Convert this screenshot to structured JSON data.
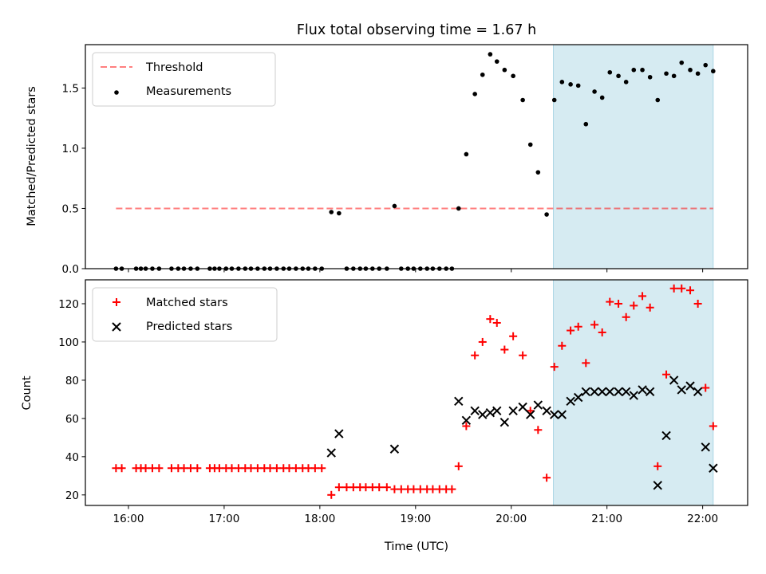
{
  "chart_data": {
    "type": "scatter",
    "title": "Flux total observing time = 1.67 h",
    "xlabel": "Time (UTC)",
    "x_unit": "hours UTC",
    "xlim": [
      15.55,
      22.47
    ],
    "x_ticks": [
      {
        "value": 16,
        "label": "16:00"
      },
      {
        "value": 17,
        "label": "17:00"
      },
      {
        "value": 18,
        "label": "18:00"
      },
      {
        "value": 19,
        "label": "19:00"
      },
      {
        "value": 20,
        "label": "20:00"
      },
      {
        "value": 21,
        "label": "21:00"
      },
      {
        "value": 22,
        "label": "22:00"
      }
    ],
    "shaded_region": {
      "x_start": 20.44,
      "x_end": 22.11,
      "color": "#add8e6"
    },
    "panels": [
      {
        "name": "ratio",
        "ylabel": "Matched/Predicted stars",
        "ylim": [
          0.0,
          1.86
        ],
        "y_ticks": [
          {
            "value": 0.0,
            "label": "0.0"
          },
          {
            "value": 0.5,
            "label": "0.5"
          },
          {
            "value": 1.0,
            "label": "1.0"
          },
          {
            "value": 1.5,
            "label": "1.5"
          }
        ],
        "threshold": {
          "label": "Threshold",
          "value": 0.5,
          "x_start": 15.87,
          "x_end": 22.11,
          "color": "#ff0000",
          "alpha": 0.5
        },
        "measurements": {
          "label": "Measurements",
          "color": "#000000",
          "x": [
            15.87,
            15.93,
            16.08,
            16.13,
            16.18,
            16.25,
            16.32,
            16.45,
            16.52,
            16.58,
            16.65,
            16.72,
            16.85,
            16.9,
            16.95,
            17.02,
            17.08,
            17.15,
            17.22,
            17.28,
            17.35,
            17.42,
            17.48,
            17.55,
            17.62,
            17.68,
            17.75,
            17.82,
            17.88,
            17.95,
            18.02,
            18.12,
            18.2,
            18.28,
            18.35,
            18.42,
            18.48,
            18.55,
            18.62,
            18.7,
            18.78,
            18.85,
            18.92,
            18.98,
            19.05,
            19.12,
            19.18,
            19.25,
            19.32,
            19.38,
            19.45,
            19.53,
            19.62,
            19.7,
            19.78,
            19.85,
            19.93,
            20.02,
            20.12,
            20.2,
            20.28,
            20.37,
            20.45,
            20.53,
            20.62,
            20.7,
            20.78,
            20.87,
            20.95,
            21.03,
            21.12,
            21.2,
            21.28,
            21.37,
            21.45,
            21.53,
            21.62,
            21.7,
            21.78,
            21.87,
            21.95,
            22.03,
            22.11
          ],
          "y": [
            0,
            0,
            0,
            0,
            0,
            0,
            0,
            0,
            0,
            0,
            0,
            0,
            0,
            0,
            0,
            0,
            0,
            0,
            0,
            0,
            0,
            0,
            0,
            0,
            0,
            0,
            0,
            0,
            0,
            0,
            0,
            0.47,
            0.46,
            0,
            0,
            0,
            0,
            0,
            0,
            0,
            0.52,
            0,
            0,
            0,
            0,
            0,
            0,
            0,
            0,
            0,
            0.5,
            0.95,
            1.45,
            1.61,
            1.78,
            1.72,
            1.65,
            1.6,
            1.4,
            1.03,
            0.8,
            0.45,
            1.4,
            1.55,
            1.53,
            1.52,
            1.2,
            1.47,
            1.42,
            1.63,
            1.6,
            1.55,
            1.65,
            1.65,
            1.59,
            1.4,
            1.62,
            1.6,
            1.71,
            1.65,
            1.62,
            1.69,
            1.64
          ]
        }
      },
      {
        "name": "count",
        "ylabel": "Count",
        "ylim": [
          14.5,
          132.5
        ],
        "y_ticks": [
          {
            "value": 20,
            "label": "20"
          },
          {
            "value": 40,
            "label": "40"
          },
          {
            "value": 60,
            "label": "60"
          },
          {
            "value": 80,
            "label": "80"
          },
          {
            "value": 100,
            "label": "100"
          },
          {
            "value": 120,
            "label": "120"
          }
        ],
        "series": [
          {
            "name": "Matched stars",
            "marker": "+",
            "color": "#ff0000",
            "x": [
              15.87,
              15.93,
              16.08,
              16.13,
              16.18,
              16.25,
              16.32,
              16.45,
              16.52,
              16.58,
              16.65,
              16.72,
              16.85,
              16.9,
              16.95,
              17.02,
              17.08,
              17.15,
              17.22,
              17.28,
              17.35,
              17.42,
              17.48,
              17.55,
              17.62,
              17.68,
              17.75,
              17.82,
              17.88,
              17.95,
              18.02,
              18.12,
              18.2,
              18.28,
              18.35,
              18.42,
              18.48,
              18.55,
              18.62,
              18.7,
              18.78,
              18.85,
              18.92,
              18.98,
              19.05,
              19.12,
              19.18,
              19.25,
              19.32,
              19.38,
              19.45,
              19.53,
              19.62,
              19.7,
              19.78,
              19.85,
              19.93,
              20.02,
              20.12,
              20.2,
              20.28,
              20.37,
              20.45,
              20.53,
              20.62,
              20.7,
              20.78,
              20.87,
              20.95,
              21.03,
              21.12,
              21.2,
              21.28,
              21.37,
              21.45,
              21.53,
              21.62,
              21.7,
              21.78,
              21.87,
              21.95,
              22.03,
              22.11
            ],
            "y": [
              34,
              34,
              34,
              34,
              34,
              34,
              34,
              34,
              34,
              34,
              34,
              34,
              34,
              34,
              34,
              34,
              34,
              34,
              34,
              34,
              34,
              34,
              34,
              34,
              34,
              34,
              34,
              34,
              34,
              34,
              34,
              20,
              24,
              24,
              24,
              24,
              24,
              24,
              24,
              24,
              23,
              23,
              23,
              23,
              23,
              23,
              23,
              23,
              23,
              23,
              35,
              56,
              93,
              100,
              112,
              110,
              96,
              103,
              93,
              64,
              54,
              29,
              87,
              98,
              106,
              108,
              89,
              109,
              105,
              121,
              120,
              113,
              119,
              124,
              118,
              35,
              83,
              128,
              128,
              127,
              120,
              76,
              56
            ]
          },
          {
            "name": "Predicted stars",
            "marker": "x",
            "color": "#000000",
            "x": [
              18.12,
              18.2,
              18.78,
              19.45,
              19.53,
              19.62,
              19.7,
              19.78,
              19.85,
              19.93,
              20.02,
              20.12,
              20.2,
              20.28,
              20.37,
              20.45,
              20.53,
              20.62,
              20.7,
              20.78,
              20.87,
              20.95,
              21.03,
              21.12,
              21.2,
              21.28,
              21.37,
              21.45,
              21.53,
              21.62,
              21.7,
              21.78,
              21.87,
              21.95,
              22.03,
              22.11
            ],
            "y": [
              42,
              52,
              44,
              69,
              59,
              64,
              62,
              63,
              64,
              58,
              64,
              66,
              62,
              67,
              64,
              62,
              62,
              69,
              71,
              74,
              74,
              74,
              74,
              74,
              74,
              72,
              75,
              74,
              25,
              51,
              80,
              75,
              77,
              74,
              45,
              34
            ]
          }
        ]
      }
    ]
  }
}
